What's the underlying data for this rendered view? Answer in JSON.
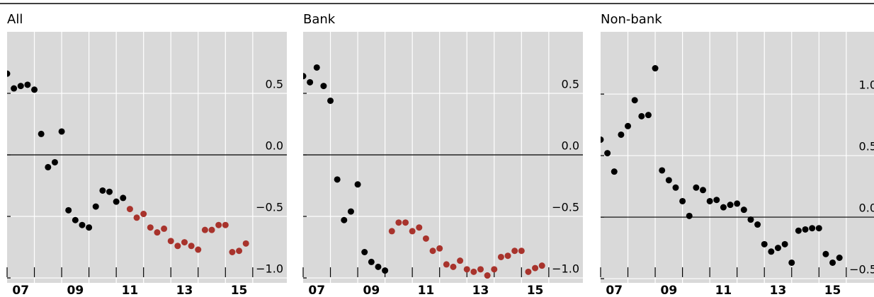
{
  "chart_data": [
    {
      "type": "scatter",
      "title": "All",
      "series": [
        {
          "color": "#000000",
          "x": [
            2007,
            2007.25,
            2007.5,
            2007.75,
            2008,
            2008.25,
            2008.5,
            2008.75,
            2009,
            2009.25,
            2009.5,
            2009.75,
            2010,
            2010.25,
            2010.5,
            2010.75,
            2011,
            2011.25
          ],
          "values": [
            0.66,
            0.54,
            0.56,
            0.57,
            0.53,
            0.17,
            -0.1,
            -0.06,
            0.19,
            -0.45,
            -0.53,
            -0.57,
            -0.59,
            -0.42,
            -0.29,
            -0.3,
            -0.38,
            -0.35
          ]
        },
        {
          "color": "#a8332c",
          "x": [
            2011.5,
            2011.75,
            2012,
            2012.25,
            2012.5,
            2012.75,
            2013,
            2013.25,
            2013.5,
            2013.75,
            2014,
            2014.25,
            2014.5,
            2014.75,
            2015,
            2015.25,
            2015.5,
            2015.75
          ],
          "values": [
            -0.44,
            -0.51,
            -0.48,
            -0.59,
            -0.63,
            -0.6,
            -0.7,
            -0.74,
            -0.71,
            -0.74,
            -0.77,
            -0.61,
            -0.61,
            -0.57,
            -0.57,
            -0.79,
            -0.78,
            -0.72
          ]
        }
      ],
      "xlim": [
        2007,
        2017.25
      ],
      "ylim": [
        -1.04,
        1.0
      ],
      "xticks": [
        {
          "value": 2007,
          "label": "07"
        },
        {
          "value": 2009,
          "label": "09"
        },
        {
          "value": 2011,
          "label": "11"
        },
        {
          "value": 2013,
          "label": "13"
        },
        {
          "value": 2015,
          "label": "15"
        }
      ],
      "yticks": [
        0.5,
        {
          "value": 0,
          "label": "0.0"
        },
        {
          "value": -0.5,
          "label": "−0.5"
        },
        {
          "value": -1.0,
          "label": "−1.0"
        }
      ],
      "grid": true
    },
    {
      "type": "scatter",
      "title": "Bank",
      "series": [
        {
          "color": "#000000",
          "x": [
            2007,
            2007.25,
            2007.5,
            2007.75,
            2008,
            2008.25,
            2008.5,
            2008.75,
            2009,
            2009.25,
            2009.5,
            2009.75,
            2010
          ],
          "values": [
            0.64,
            0.59,
            0.71,
            0.56,
            0.44,
            -0.2,
            -0.53,
            -0.46,
            -0.24,
            -0.79,
            -0.87,
            -0.91,
            -0.94
          ]
        },
        {
          "color": "#a8332c",
          "x": [
            2010.25,
            2010.5,
            2010.75,
            2011,
            2011.25,
            2011.5,
            2011.75,
            2012,
            2012.25,
            2012.5,
            2012.75,
            2013,
            2013.25,
            2013.5,
            2013.75,
            2014,
            2014.25,
            2014.5,
            2014.75,
            2015,
            2015.25,
            2015.5,
            2015.75
          ],
          "values": [
            -0.62,
            -0.55,
            -0.55,
            -0.62,
            -0.59,
            -0.68,
            -0.78,
            -0.76,
            -0.89,
            -0.91,
            -0.86,
            -0.93,
            -0.95,
            -0.93,
            -0.98,
            -0.93,
            -0.83,
            -0.82,
            -0.78,
            -0.78,
            -0.95,
            -0.92,
            -0.9
          ]
        }
      ],
      "xlim": [
        2007,
        2017.25
      ],
      "ylim": [
        -1.04,
        1.0
      ],
      "xticks": [
        {
          "value": 2007,
          "label": "07"
        },
        {
          "value": 2009,
          "label": "09"
        },
        {
          "value": 2011,
          "label": "11"
        },
        {
          "value": 2013,
          "label": "13"
        },
        {
          "value": 2015,
          "label": "15"
        }
      ],
      "yticks": [
        0.5,
        {
          "value": 0,
          "label": "0.0"
        },
        {
          "value": -0.5,
          "label": "−0.5"
        },
        {
          "value": -1.0,
          "label": "−1.0"
        }
      ],
      "grid": true
    },
    {
      "type": "scatter",
      "title": "Non-bank",
      "series": [
        {
          "color": "#000000",
          "x": [
            2007,
            2007.25,
            2007.5,
            2007.75,
            2008,
            2008.25,
            2008.5,
            2008.75,
            2009,
            2009.25,
            2009.5,
            2009.75,
            2010,
            2010.25,
            2010.5,
            2010.75,
            2011,
            2011.25,
            2011.5,
            2011.75,
            2012,
            2012.25,
            2012.5,
            2012.75,
            2013,
            2013.25,
            2013.5,
            2013.75,
            2014,
            2014.25,
            2014.5,
            2014.75,
            2015,
            2015.25,
            2015.5,
            2015.75
          ],
          "values": [
            0.63,
            0.52,
            0.37,
            0.67,
            0.74,
            0.95,
            0.82,
            0.83,
            1.21,
            0.38,
            0.3,
            0.24,
            0.13,
            0.01,
            0.24,
            0.22,
            0.13,
            0.14,
            0.08,
            0.1,
            0.11,
            0.06,
            -0.02,
            -0.06,
            -0.22,
            -0.28,
            -0.25,
            -0.22,
            -0.37,
            -0.11,
            -0.1,
            -0.09,
            -0.09,
            -0.3,
            -0.37,
            -0.33
          ]
        }
      ],
      "xlim": [
        2007,
        2017.25
      ],
      "ylim": [
        -0.534,
        1.506
      ],
      "xticks": [
        {
          "value": 2007,
          "label": "07"
        },
        {
          "value": 2009,
          "label": "09"
        },
        {
          "value": 2011,
          "label": "11"
        },
        {
          "value": 2013,
          "label": "13"
        },
        {
          "value": 2015,
          "label": "15"
        }
      ],
      "yticks": [
        {
          "value": 1.0,
          "label": "1.0"
        },
        0.5,
        {
          "value": 0,
          "label": "0.0"
        },
        {
          "value": -0.5,
          "label": "−0.5"
        }
      ],
      "grid": true
    }
  ]
}
